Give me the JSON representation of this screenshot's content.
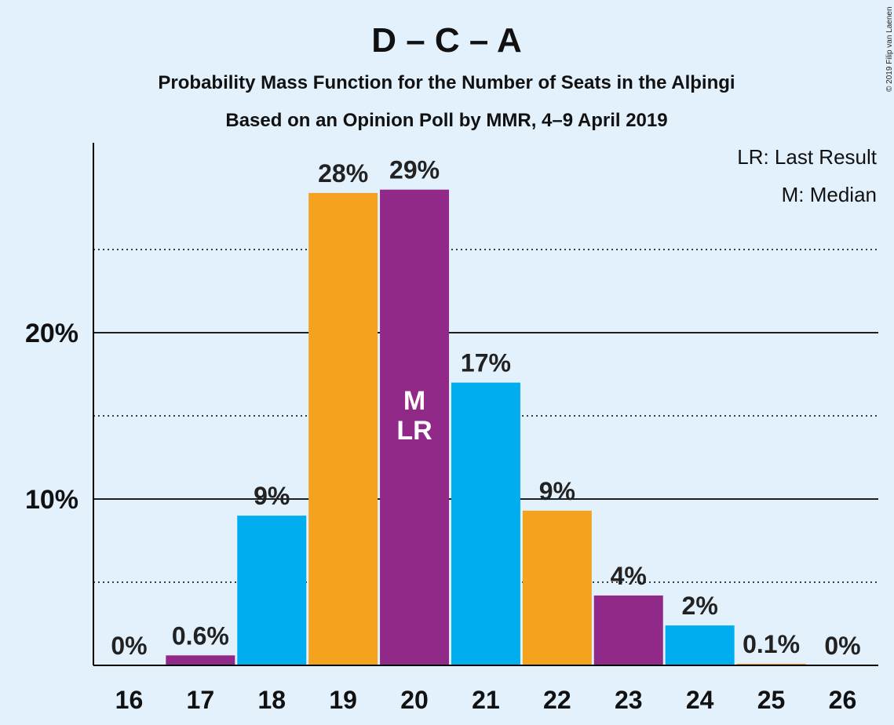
{
  "title": "D – C – A",
  "subtitle": "Probability Mass Function for the Number of Seats in the Alþingi",
  "subtitle2": "Based on an Opinion Poll by MMR, 4–9 April 2019",
  "legend": {
    "lr": "LR: Last Result",
    "m": "M: Median"
  },
  "copyright": "© 2019 Filip van Laenen",
  "colors": {
    "background": "#e3f1fd",
    "blue": "#00aeef",
    "orange": "#f5a31f",
    "purple": "#912989"
  },
  "chart_data": {
    "type": "bar",
    "categories": [
      "16",
      "17",
      "18",
      "19",
      "20",
      "21",
      "22",
      "23",
      "24",
      "25",
      "26"
    ],
    "values": [
      0,
      0.6,
      9,
      28.4,
      28.6,
      17,
      9.3,
      4.2,
      2.4,
      0.1,
      0
    ],
    "labels": [
      "0%",
      "0.6%",
      "9%",
      "28%",
      "29%",
      "17%",
      "9%",
      "4%",
      "2%",
      "0.1%",
      "0%"
    ],
    "bar_colors": [
      "purple",
      "purple",
      "blue",
      "orange",
      "purple",
      "blue",
      "orange",
      "purple",
      "blue",
      "orange",
      "purple"
    ],
    "ylim": [
      0,
      31
    ],
    "yticks": [
      {
        "value": 10,
        "label": "10%"
      },
      {
        "value": 20,
        "label": "20%"
      }
    ],
    "minor_gridlines": [
      5,
      15,
      25
    ],
    "markers": [
      {
        "category": "20",
        "lines": [
          "M",
          "LR"
        ]
      }
    ],
    "grid": true,
    "legend_position": "top-right"
  }
}
